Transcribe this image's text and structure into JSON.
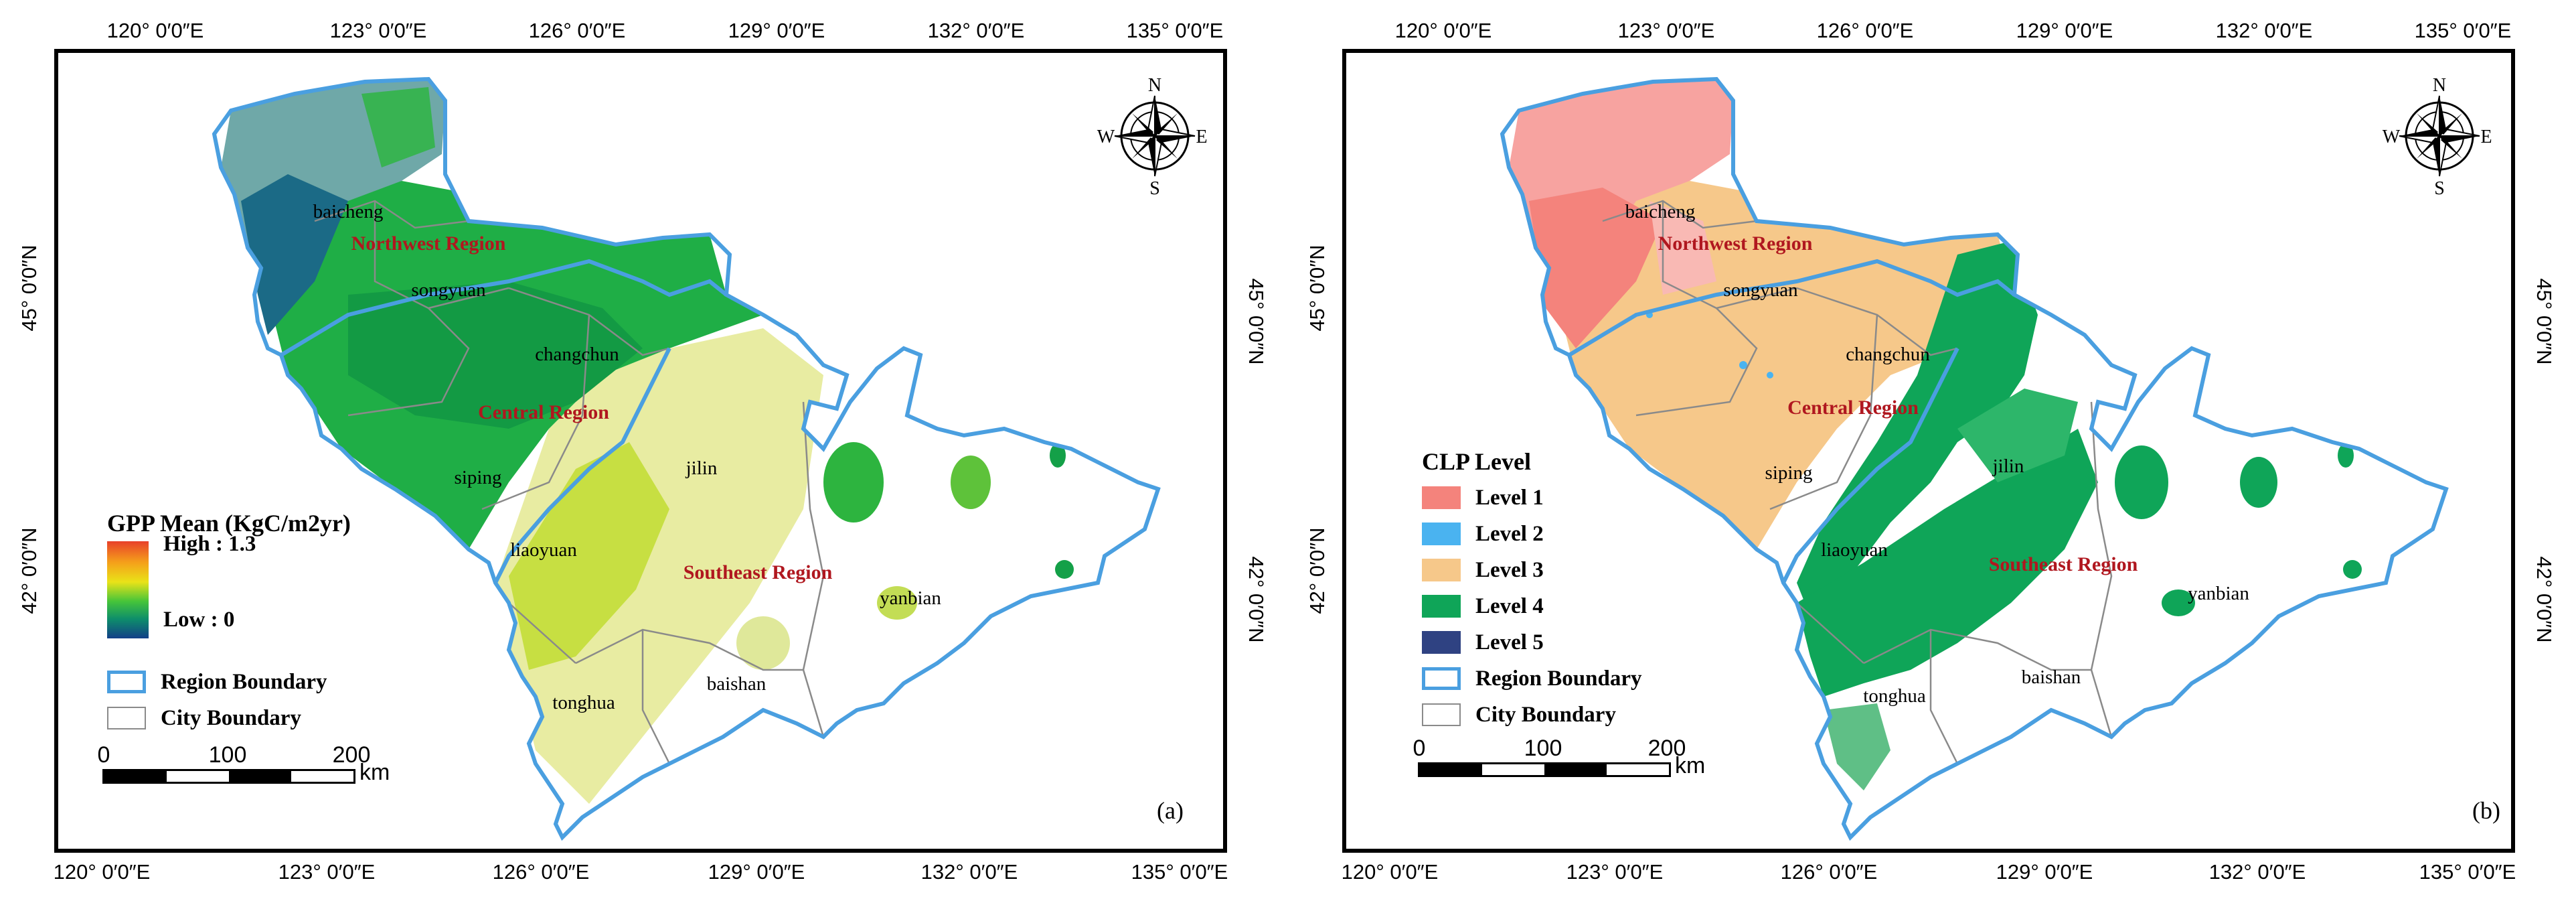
{
  "panels": [
    {
      "id": "a",
      "panel_label": "(a)",
      "lon_labels": [
        "120° 0′0″E",
        "123° 0′0″E",
        "126° 0′0″E",
        "129° 0′0″E",
        "132° 0′0″E",
        "135° 0′0″E"
      ],
      "lat_labels": [
        "45° 0′0″N",
        "42° 0′0″N"
      ],
      "region_labels": [
        "Northwest Region",
        "Central Region",
        "Southeast Region"
      ],
      "city_labels": [
        "baicheng",
        "songyuan",
        "changchun",
        "siping",
        "liaoyuan",
        "jilin",
        "yanbian",
        "baishan",
        "tonghua"
      ],
      "north_arrow": {
        "n": "N",
        "s": "S",
        "e": "E",
        "w": "W"
      },
      "legend": {
        "title": "GPP Mean (KgC/m2yr)",
        "high": "High : 1.3",
        "low": "Low : 0",
        "boundaries": [
          "Region Boundary",
          "City Boundary"
        ]
      },
      "scale": {
        "ticks": [
          "0",
          "100",
          "200"
        ],
        "unit": "km"
      }
    },
    {
      "id": "b",
      "panel_label": "(b)",
      "lon_labels": [
        "120° 0′0″E",
        "123° 0′0″E",
        "126° 0′0″E",
        "129° 0′0″E",
        "132° 0′0″E",
        "135° 0′0″E"
      ],
      "lat_labels": [
        "45° 0′0″N",
        "42° 0′0″N"
      ],
      "region_labels": [
        "Northwest Region",
        "Central Region",
        "Southeast Region"
      ],
      "city_labels": [
        "baicheng",
        "songyuan",
        "changchun",
        "siping",
        "liaoyuan",
        "jilin",
        "yanbian",
        "baishan",
        "tonghua"
      ],
      "north_arrow": {
        "n": "N",
        "s": "S",
        "e": "E",
        "w": "W"
      },
      "legend": {
        "title": "CLP Level",
        "levels": [
          "Level 1",
          "Level 2",
          "Level 3",
          "Level 4",
          "Level 5"
        ],
        "boundaries": [
          "Region Boundary",
          "City Boundary"
        ]
      },
      "scale": {
        "ticks": [
          "0",
          "100",
          "200"
        ],
        "unit": "km"
      }
    }
  ],
  "colors": {
    "region_boundary": "#4a9fe0",
    "city_boundary": "#8a8a8a",
    "region_label": "#b0171f",
    "gpp_high": "#e8412a",
    "gpp_mid": "#22b04a",
    "gpp_low": "#123f88",
    "level_1": "#f4837c",
    "level_2": "#4ab3f0",
    "level_3": "#f6c88a",
    "level_4": "#0fa558",
    "level_5": "#2f4282"
  }
}
